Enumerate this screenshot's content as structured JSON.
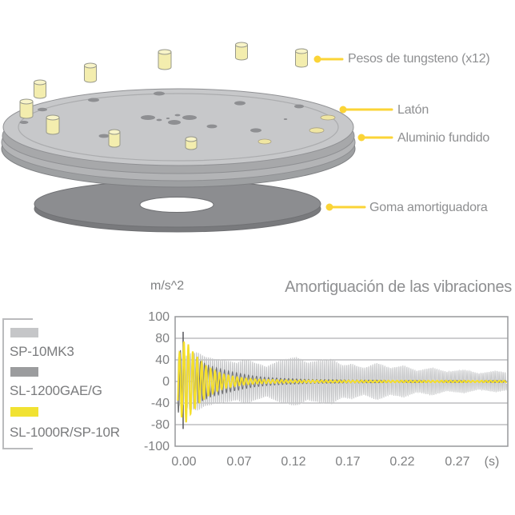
{
  "diagram": {
    "labels": {
      "weights": "Pesos de tungsteno (x12)",
      "brass": "Latón",
      "aluminum": "Aluminio fundido",
      "rubber": "Goma amortiguadora"
    },
    "weights_count": 12,
    "colors": {
      "leader": "#FBD437",
      "weight_fill": "#F3EDAE",
      "platter_top": "#C7C8CA",
      "platter_side": "#A7A8AA",
      "rubber_disc": "#8C8D90",
      "label_text": "#8E8F91"
    }
  },
  "chart_data": {
    "type": "line",
    "title": "Amortiguación de las vibraciones",
    "ylabel": "m/s^2",
    "xunit": "(s)",
    "ylim": [
      -100,
      100
    ],
    "y_ticks": [
      "100",
      "80",
      "40",
      "0",
      "-40",
      "-80",
      "-100"
    ],
    "x_ticks": [
      "0.00",
      "0.07",
      "0.12",
      "0.17",
      "0.22",
      "0.27"
    ],
    "grid": "horizontal lines at 80, 40, 0, -40, -80",
    "trigger_marker": {
      "t": 0,
      "span": [
        -88,
        92
      ]
    },
    "series": [
      {
        "name": "SP-10MK3",
        "color": "#C4C5C7",
        "stroke": 1,
        "freq_hz": 510,
        "phase": 0.0,
        "envelope": [
          [
            0.0,
            45
          ],
          [
            0.005,
            52
          ],
          [
            0.012,
            55
          ],
          [
            0.023,
            45
          ],
          [
            0.039,
            40
          ],
          [
            0.052,
            35
          ],
          [
            0.06,
            42
          ],
          [
            0.07,
            35
          ],
          [
            0.081,
            28
          ],
          [
            0.092,
            38
          ],
          [
            0.11,
            46
          ],
          [
            0.121,
            35
          ],
          [
            0.133,
            40
          ],
          [
            0.145,
            42
          ],
          [
            0.155,
            30
          ],
          [
            0.164,
            33
          ],
          [
            0.176,
            25
          ],
          [
            0.189,
            35
          ],
          [
            0.202,
            25
          ],
          [
            0.215,
            30
          ],
          [
            0.228,
            20
          ],
          [
            0.243,
            26
          ],
          [
            0.257,
            18
          ],
          [
            0.274,
            22
          ],
          [
            0.289,
            15
          ],
          [
            0.305,
            20
          ],
          [
            0.317,
            16
          ]
        ]
      },
      {
        "name": "SL-1200GAE/G",
        "color": "#6F7072",
        "stroke": 1,
        "freq_hz": 255,
        "phase": 0.8,
        "envelope": [
          [
            0.0016,
            58
          ],
          [
            0.006,
            50
          ],
          [
            0.014,
            40
          ],
          [
            0.022,
            32
          ],
          [
            0.031,
            26
          ],
          [
            0.043,
            20
          ],
          [
            0.055,
            15
          ],
          [
            0.066,
            11
          ],
          [
            0.078,
            8
          ],
          [
            0.094,
            6
          ],
          [
            0.113,
            4.5
          ],
          [
            0.133,
            3.5
          ],
          [
            0.156,
            3
          ],
          [
            0.188,
            2.5
          ],
          [
            0.227,
            2
          ],
          [
            0.317,
            1.8
          ]
        ]
      },
      {
        "name": "SL-1000R/SP-10R",
        "color": "#F5DF2B",
        "stroke": 2,
        "freq_hz": 230,
        "phase": 1.6,
        "envelope": [
          [
            -0.005,
            50
          ],
          [
            -0.0016,
            70
          ],
          [
            0.0016,
            78
          ],
          [
            0.006,
            62
          ],
          [
            0.012,
            48
          ],
          [
            0.017,
            36
          ],
          [
            0.023,
            27
          ],
          [
            0.031,
            19
          ],
          [
            0.039,
            13
          ],
          [
            0.049,
            9
          ],
          [
            0.059,
            6
          ],
          [
            0.07,
            4
          ],
          [
            0.086,
            3
          ],
          [
            0.11,
            2.2
          ],
          [
            0.149,
            1.8
          ],
          [
            0.317,
            1.5
          ]
        ]
      }
    ],
    "legend": [
      {
        "label": "SP-10MK3",
        "swatch": "#C5C6C8"
      },
      {
        "label": "SL-1200GAE/G",
        "swatch": "#9B9C9E"
      },
      {
        "label": "SL-1000R/SP-10R",
        "swatch": "#F1E232"
      }
    ]
  }
}
